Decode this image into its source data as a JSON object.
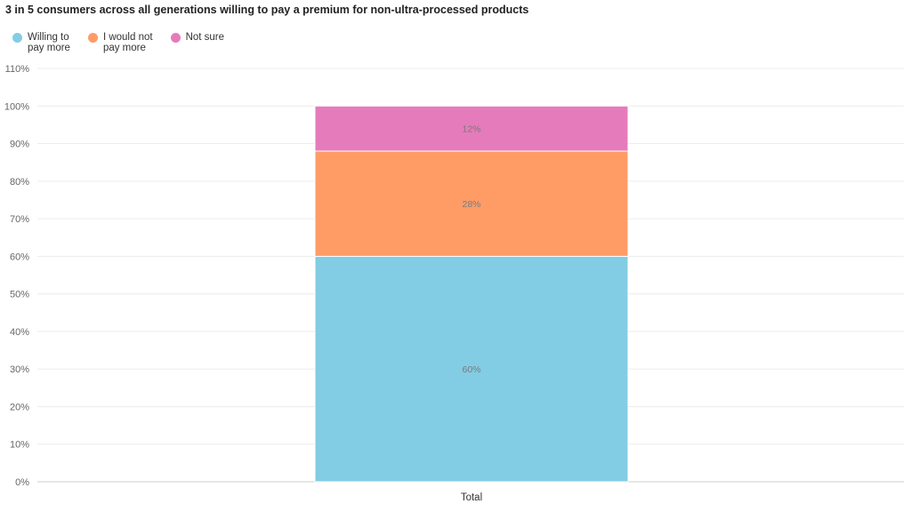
{
  "chart_data": {
    "type": "bar",
    "stacked": true,
    "title": "3 in 5 consumers across all generations willing to pay a premium for non-ultra-processed products",
    "xlabel": "",
    "ylabel": "",
    "categories": [
      "Total"
    ],
    "series": [
      {
        "name": "Willing to\npay more",
        "values": [
          60
        ],
        "color": "#82cde4"
      },
      {
        "name": "I would not\npay more",
        "values": [
          28
        ],
        "color": "#ff9c66"
      },
      {
        "name": "Not sure",
        "values": [
          12
        ],
        "color": "#e67bbb"
      }
    ],
    "data_labels": [
      "60%",
      "28%",
      "12%"
    ],
    "ylim": [
      0,
      110
    ],
    "y_ticks": [
      0,
      10,
      20,
      30,
      40,
      50,
      60,
      70,
      80,
      90,
      100,
      110
    ],
    "y_tick_labels": [
      "0%",
      "10%",
      "20%",
      "30%",
      "40%",
      "50%",
      "60%",
      "70%",
      "80%",
      "90%",
      "100%",
      "110%"
    ],
    "grid": true,
    "legend_position": "top-left"
  }
}
